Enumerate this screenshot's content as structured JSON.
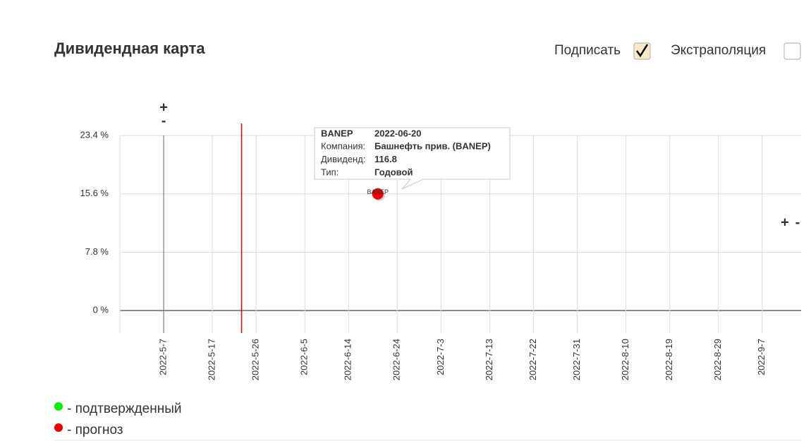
{
  "header": {
    "title": "Дивидендная карта"
  },
  "options": [
    {
      "label": "Подписать",
      "checked": true
    },
    {
      "label": "Экстраполяция",
      "checked": false
    }
  ],
  "chart_data": {
    "type": "scatter",
    "xlim": [
      "2022-04-28",
      "2022-09-15"
    ],
    "ylim": [
      -3,
      25
    ],
    "xticks": [
      {
        "value": "2022-05-07",
        "label": "2022-5-7"
      },
      {
        "value": "2022-05-17",
        "label": "2022-5-17"
      },
      {
        "value": "2022-05-26",
        "label": "2022-5-26"
      },
      {
        "value": "2022-06-05",
        "label": "2022-6-5"
      },
      {
        "value": "2022-06-14",
        "label": "2022-6-14"
      },
      {
        "value": "2022-06-24",
        "label": "2022-6-24"
      },
      {
        "value": "2022-07-03",
        "label": "2022-7-3"
      },
      {
        "value": "2022-07-13",
        "label": "2022-7-13"
      },
      {
        "value": "2022-07-22",
        "label": "2022-7-22"
      },
      {
        "value": "2022-07-31",
        "label": "2022-7-31"
      },
      {
        "value": "2022-08-10",
        "label": "2022-8-10"
      },
      {
        "value": "2022-08-19",
        "label": "2022-8-19"
      },
      {
        "value": "2022-08-29",
        "label": "2022-8-29"
      },
      {
        "value": "2022-09-07",
        "label": "2022-9-7"
      }
    ],
    "yticks": [
      {
        "value": 0,
        "label": "0 %"
      },
      {
        "value": 7.8,
        "label": "7.8 %"
      },
      {
        "value": 15.6,
        "label": "15.6 %"
      },
      {
        "value": 23.4,
        "label": "23.4 %"
      }
    ],
    "grid": true,
    "today_line": "2022-05-23",
    "zoom_x": [
      "+",
      "-"
    ],
    "zoom_y": [
      "+",
      "-"
    ],
    "series": [
      {
        "name": "- подтвержденный",
        "color": "#00ee00",
        "x": [],
        "values": [],
        "labels": []
      },
      {
        "name": "- прогноз",
        "color": "#ee0000",
        "x": [
          "2022-06-20"
        ],
        "values": [
          15.6
        ],
        "labels": [
          "BANEP"
        ]
      }
    ],
    "tooltip": {
      "ticker": "BANEP",
      "date": "2022-06-20",
      "rows": [
        [
          "Компания:",
          "Башнефть прив. (BANEP)"
        ],
        [
          "Дивиденд:",
          116.8
        ],
        [
          "Тип:",
          "Годовой"
        ]
      ]
    }
  }
}
